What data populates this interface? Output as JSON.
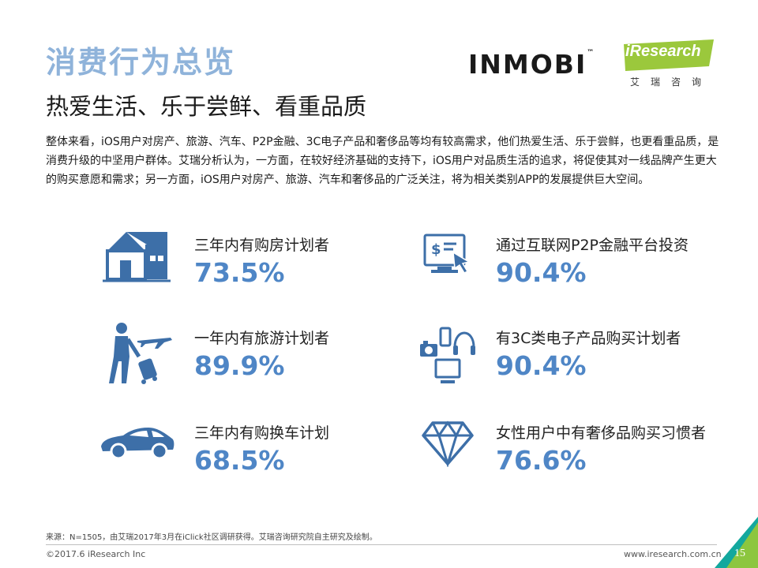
{
  "header": {
    "title": "消费行为总览",
    "subtitle": "热爱生活、乐于尝鲜、看重品质",
    "brand_inmobi": "INMOBI",
    "brand_inmobi_tm": "™",
    "brand_iresearch": "iResearch",
    "brand_iresearch_cn": "艾瑞咨询"
  },
  "intro": "整体来看，iOS用户对房产、旅游、汽车、P2P金融、3C电子产品和奢侈品等均有较高需求，他们热爱生活、乐于尝鲜，也更看重品质，是消费升级的中坚用户群体。艾瑞分析认为，一方面，在较好经济基础的支持下，iOS用户对品质生活的追求，将促使其对一线品牌产生更大的购买意愿和需求；另一方面，iOS用户对房产、旅游、汽车和奢侈品的广泛关注，将为相关类别APP的发展提供巨大空间。",
  "stats": [
    {
      "label": "三年内有购房计划者",
      "value": "73.5%",
      "icon": "house-icon"
    },
    {
      "label": "一年内有旅游计划者",
      "value": "89.9%",
      "icon": "traveler-icon"
    },
    {
      "label": "三年内有购换车计划",
      "value": "68.5%",
      "icon": "car-icon"
    },
    {
      "label": "通过互联网P2P金融平台投资",
      "value": "90.4%",
      "icon": "p2p-monitor-icon"
    },
    {
      "label": "有3C类电子产品购买计划者",
      "value": "90.4%",
      "icon": "electronics-icon"
    },
    {
      "label": "女性用户中有奢侈品购买习惯者",
      "value": "76.6%",
      "icon": "diamond-icon"
    }
  ],
  "footer": {
    "source": "来源：N=1505，由艾瑞2017年3月在iClick社区调研获得。艾瑞咨询研究院自主研究及绘制。",
    "copyright": "©2017.6 iResearch Inc",
    "website": "www.iresearch.com.cn",
    "page": "15"
  },
  "colors": {
    "accent": "#4f86c6",
    "title": "#8fb3da",
    "icon": "#3d6fa8",
    "logo_green": "#9bc83c",
    "corner_green": "#8cc63f",
    "corner_teal": "#13a89e"
  }
}
